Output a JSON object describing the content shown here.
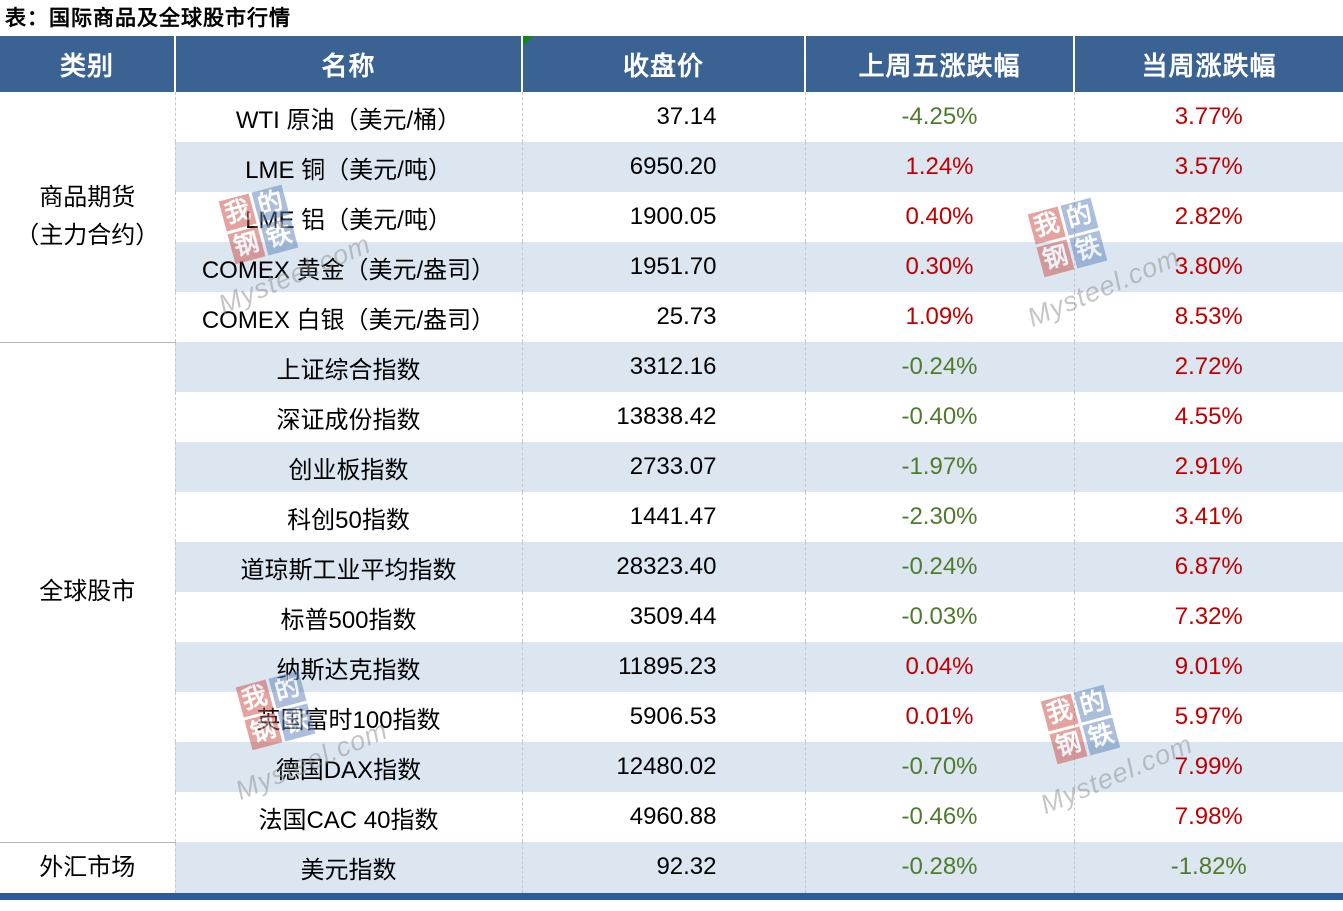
{
  "title": "表：国际商品及全球股市行情",
  "table": {
    "headers": [
      "类别",
      "名称",
      "收盘价",
      "上周五涨跌幅",
      "当周涨跌幅"
    ],
    "sections": [
      {
        "category": "商品期货\n（主力合约）",
        "rows": [
          {
            "name": "WTI 原油（美元/桶）",
            "close": "37.14",
            "last_friday": "-4.25%",
            "week": "3.77%"
          },
          {
            "name": "LME 铜（美元/吨）",
            "close": "6950.20",
            "last_friday": "1.24%",
            "week": "3.57%"
          },
          {
            "name": "LME 铝（美元/吨）",
            "close": "1900.05",
            "last_friday": "0.40%",
            "week": "2.82%"
          },
          {
            "name": "COMEX 黄金（美元/盎司）",
            "close": "1951.70",
            "last_friday": "0.30%",
            "week": "3.80%"
          },
          {
            "name": "COMEX 白银（美元/盎司）",
            "close": "25.73",
            "last_friday": "1.09%",
            "week": "8.53%"
          }
        ]
      },
      {
        "category": "全球股市",
        "rows": [
          {
            "name": "上证综合指数",
            "close": "3312.16",
            "last_friday": "-0.24%",
            "week": "2.72%"
          },
          {
            "name": "深证成份指数",
            "close": "13838.42",
            "last_friday": "-0.40%",
            "week": "4.55%"
          },
          {
            "name": "创业板指数",
            "close": "2733.07",
            "last_friday": "-1.97%",
            "week": "2.91%"
          },
          {
            "name": "科创50指数",
            "close": "1441.47",
            "last_friday": "-2.30%",
            "week": "3.41%"
          },
          {
            "name": "道琼斯工业平均指数",
            "close": "28323.40",
            "last_friday": "-0.24%",
            "week": "6.87%"
          },
          {
            "name": "标普500指数",
            "close": "3509.44",
            "last_friday": "-0.03%",
            "week": "7.32%"
          },
          {
            "name": "纳斯达克指数",
            "close": "11895.23",
            "last_friday": "0.04%",
            "week": "9.01%"
          },
          {
            "name": "英国富时100指数",
            "close": "5906.53",
            "last_friday": "0.01%",
            "week": "5.97%"
          },
          {
            "name": "德国DAX指数",
            "close": "12480.02",
            "last_friday": "-0.70%",
            "week": "7.99%"
          },
          {
            "name": "法国CAC 40指数",
            "close": "4960.88",
            "last_friday": "-0.46%",
            "week": "7.98%"
          }
        ]
      },
      {
        "category": "外汇市场",
        "rows": [
          {
            "name": "美元指数",
            "close": "92.32",
            "last_friday": "-0.28%",
            "week": "-1.82%"
          }
        ]
      }
    ]
  },
  "watermark": {
    "chars": [
      "我",
      "的",
      "钢",
      "铁"
    ],
    "domain": "Mysteel.com"
  },
  "colors": {
    "header_bg": "#3a6292",
    "row_alt_bg": "#dce6f1",
    "positive": "#c00000",
    "negative": "#4f7b2d",
    "bottom_border": "#2e5a99",
    "flag_green": "#0e8a10"
  }
}
